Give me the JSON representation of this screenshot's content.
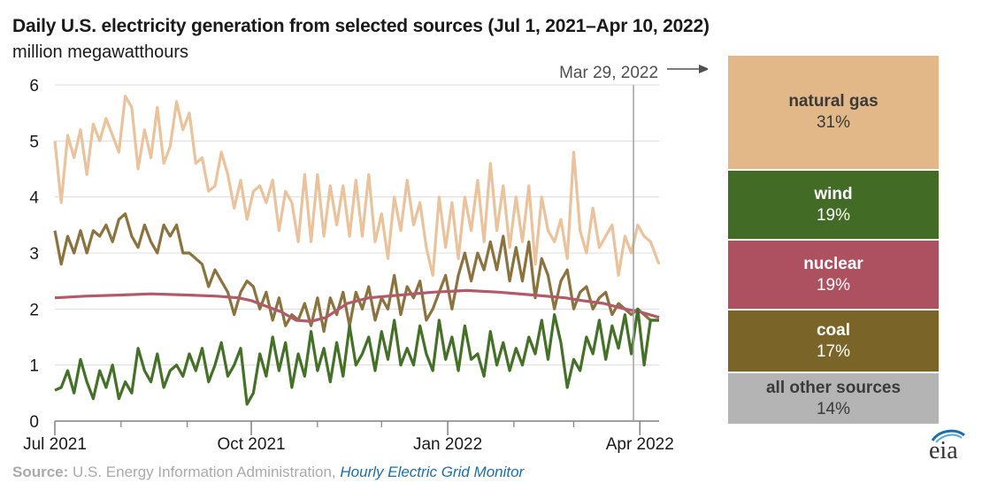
{
  "title": "Daily U.S. electricity generation from selected sources (Jul 1, 2021–Apr 10, 2022)",
  "subtitle": "million megawatthours",
  "annotation": "Mar 29, 2022",
  "source_prefix": "Source:",
  "source_text": " U.S. Energy Information Administration, ",
  "source_link": "Hourly Electric Grid Monitor",
  "logo_text": "eia",
  "shares": [
    {
      "name": "natural gas",
      "pct": "31%",
      "color": "#e2b888",
      "text": "#3a3a3a"
    },
    {
      "name": "wind",
      "pct": "19%",
      "color": "#426b25",
      "text": "#ffffff"
    },
    {
      "name": "nuclear",
      "pct": "19%",
      "color": "#ad5060",
      "text": "#ffffff"
    },
    {
      "name": "coal",
      "pct": "17%",
      "color": "#7a6427",
      "text": "#ffffff"
    },
    {
      "name": "all other sources",
      "pct": "14%",
      "color": "#b4b4b4",
      "text": "#3a3a3a"
    }
  ],
  "chart_data": {
    "type": "line",
    "title": "Daily U.S. electricity generation from selected sources (Jul 1, 2021–Apr 10, 2022)",
    "ylabel": "million megawatthours",
    "ylim": [
      0,
      6
    ],
    "yticks": [
      "0",
      "1",
      "2",
      "3",
      "4",
      "5",
      "6"
    ],
    "xlim": [
      "2021-07-01",
      "2022-04-10"
    ],
    "xticks": [
      {
        "date": "2021-07-01",
        "label": "Jul 2021"
      },
      {
        "date": "2021-10-01",
        "label": "Oct 2021"
      },
      {
        "date": "2022-01-01",
        "label": "Jan 2022"
      },
      {
        "date": "2022-04-01",
        "label": "Apr 2022"
      }
    ],
    "minor_ticks": [
      "2021-08-01",
      "2021-09-01",
      "2021-11-01",
      "2021-12-01",
      "2022-02-01",
      "2022-03-01"
    ],
    "marker_date": "2022-03-29",
    "grid": true,
    "series": [
      {
        "name": "natural gas",
        "color": "#eac29c",
        "x": [
          "2021-07-01",
          "2021-07-04",
          "2021-07-07",
          "2021-07-10",
          "2021-07-13",
          "2021-07-16",
          "2021-07-19",
          "2021-07-22",
          "2021-07-25",
          "2021-07-28",
          "2021-07-31",
          "2021-08-03",
          "2021-08-06",
          "2021-08-09",
          "2021-08-12",
          "2021-08-15",
          "2021-08-18",
          "2021-08-21",
          "2021-08-24",
          "2021-08-27",
          "2021-08-30",
          "2021-09-02",
          "2021-09-05",
          "2021-09-08",
          "2021-09-11",
          "2021-09-14",
          "2021-09-17",
          "2021-09-20",
          "2021-09-23",
          "2021-09-26",
          "2021-09-29",
          "2021-10-02",
          "2021-10-05",
          "2021-10-08",
          "2021-10-11",
          "2021-10-14",
          "2021-10-17",
          "2021-10-20",
          "2021-10-23",
          "2021-10-26",
          "2021-10-29",
          "2021-11-01",
          "2021-11-04",
          "2021-11-07",
          "2021-11-10",
          "2021-11-13",
          "2021-11-16",
          "2021-11-19",
          "2021-11-22",
          "2021-11-25",
          "2021-11-28",
          "2021-12-01",
          "2021-12-04",
          "2021-12-07",
          "2021-12-10",
          "2021-12-13",
          "2021-12-16",
          "2021-12-19",
          "2021-12-22",
          "2021-12-25",
          "2021-12-28",
          "2021-12-31",
          "2022-01-03",
          "2022-01-06",
          "2022-01-09",
          "2022-01-12",
          "2022-01-15",
          "2022-01-18",
          "2022-01-21",
          "2022-01-24",
          "2022-01-27",
          "2022-01-30",
          "2022-02-02",
          "2022-02-05",
          "2022-02-08",
          "2022-02-11",
          "2022-02-14",
          "2022-02-17",
          "2022-02-20",
          "2022-02-23",
          "2022-02-26",
          "2022-03-01",
          "2022-03-04",
          "2022-03-07",
          "2022-03-10",
          "2022-03-13",
          "2022-03-16",
          "2022-03-19",
          "2022-03-22",
          "2022-03-25",
          "2022-03-28",
          "2022-03-31",
          "2022-04-03",
          "2022-04-06",
          "2022-04-10"
        ],
        "values": [
          5.0,
          3.9,
          5.1,
          4.7,
          5.2,
          4.4,
          5.3,
          5.0,
          5.4,
          5.1,
          4.8,
          5.8,
          5.6,
          4.5,
          5.2,
          4.7,
          5.6,
          4.6,
          4.9,
          5.7,
          5.2,
          5.5,
          4.6,
          4.7,
          4.1,
          4.2,
          4.8,
          4.4,
          3.8,
          4.3,
          3.6,
          4.1,
          4.2,
          3.9,
          4.3,
          3.4,
          4.1,
          3.9,
          3.2,
          4.4,
          3.2,
          4.4,
          3.3,
          4.2,
          3.5,
          4.2,
          3.3,
          4.3,
          3.3,
          4.4,
          3.2,
          3.7,
          2.9,
          4.0,
          3.4,
          4.3,
          3.5,
          3.9,
          3.1,
          2.6,
          4.0,
          3.1,
          3.9,
          2.9,
          4.0,
          3.4,
          4.3,
          3.2,
          4.6,
          3.4,
          4.2,
          3.1,
          4.0,
          3.2,
          4.2,
          2.8,
          4.0,
          3.4,
          3.2,
          3.6,
          2.9,
          4.8,
          3.4,
          3.0,
          3.8,
          3.1,
          3.3,
          3.5,
          2.6,
          3.3,
          3.0,
          3.5,
          3.3,
          3.2,
          2.8
        ]
      },
      {
        "name": "coal",
        "color": "#8b7340",
        "x": [
          "2021-07-01",
          "2021-07-04",
          "2021-07-07",
          "2021-07-10",
          "2021-07-13",
          "2021-07-16",
          "2021-07-19",
          "2021-07-22",
          "2021-07-25",
          "2021-07-28",
          "2021-07-31",
          "2021-08-03",
          "2021-08-06",
          "2021-08-09",
          "2021-08-12",
          "2021-08-15",
          "2021-08-18",
          "2021-08-21",
          "2021-08-24",
          "2021-08-27",
          "2021-08-30",
          "2021-09-02",
          "2021-09-05",
          "2021-09-08",
          "2021-09-11",
          "2021-09-14",
          "2021-09-17",
          "2021-09-20",
          "2021-09-23",
          "2021-09-26",
          "2021-09-29",
          "2021-10-02",
          "2021-10-05",
          "2021-10-08",
          "2021-10-11",
          "2021-10-14",
          "2021-10-17",
          "2021-10-20",
          "2021-10-23",
          "2021-10-26",
          "2021-10-29",
          "2021-11-01",
          "2021-11-04",
          "2021-11-07",
          "2021-11-10",
          "2021-11-13",
          "2021-11-16",
          "2021-11-19",
          "2021-11-22",
          "2021-11-25",
          "2021-11-28",
          "2021-12-01",
          "2021-12-04",
          "2021-12-07",
          "2021-12-10",
          "2021-12-13",
          "2021-12-16",
          "2021-12-19",
          "2021-12-22",
          "2021-12-25",
          "2021-12-28",
          "2021-12-31",
          "2022-01-03",
          "2022-01-06",
          "2022-01-09",
          "2022-01-12",
          "2022-01-15",
          "2022-01-18",
          "2022-01-21",
          "2022-01-24",
          "2022-01-27",
          "2022-01-30",
          "2022-02-02",
          "2022-02-05",
          "2022-02-08",
          "2022-02-11",
          "2022-02-14",
          "2022-02-17",
          "2022-02-20",
          "2022-02-23",
          "2022-02-26",
          "2022-03-01",
          "2022-03-04",
          "2022-03-07",
          "2022-03-10",
          "2022-03-13",
          "2022-03-16",
          "2022-03-19",
          "2022-03-22",
          "2022-03-25",
          "2022-03-28",
          "2022-03-31",
          "2022-04-03",
          "2022-04-06",
          "2022-04-10"
        ],
        "values": [
          3.4,
          2.8,
          3.3,
          3.0,
          3.4,
          3.0,
          3.4,
          3.3,
          3.5,
          3.2,
          3.6,
          3.7,
          3.3,
          3.1,
          3.5,
          3.2,
          3.0,
          3.5,
          3.3,
          3.5,
          3.0,
          3.0,
          2.9,
          2.8,
          2.4,
          2.7,
          2.5,
          2.3,
          1.9,
          2.3,
          2.5,
          2.4,
          2.0,
          2.3,
          1.8,
          2.2,
          1.7,
          1.9,
          1.8,
          2.1,
          1.7,
          2.2,
          1.6,
          2.2,
          1.9,
          2.3,
          1.7,
          2.3,
          2.0,
          2.4,
          1.8,
          2.2,
          2.0,
          2.6,
          1.9,
          2.4,
          2.2,
          2.5,
          1.8,
          2.0,
          2.3,
          2.6,
          2.0,
          2.6,
          3.0,
          2.5,
          3.0,
          2.7,
          3.2,
          2.7,
          3.3,
          2.5,
          3.1,
          2.5,
          3.2,
          2.2,
          2.9,
          2.6,
          2.0,
          2.5,
          2.7,
          2.0,
          2.3,
          2.4,
          2.0,
          2.2,
          2.3,
          1.9,
          2.1,
          2.0,
          1.9,
          2.0,
          1.9,
          1.8,
          1.8
        ]
      },
      {
        "name": "nuclear",
        "color": "#b15b6a",
        "x": [
          "2021-07-01",
          "2021-07-15",
          "2021-08-01",
          "2021-08-15",
          "2021-09-01",
          "2021-09-15",
          "2021-09-25",
          "2021-10-01",
          "2021-10-08",
          "2021-10-15",
          "2021-10-22",
          "2021-10-29",
          "2021-11-05",
          "2021-11-15",
          "2021-11-25",
          "2021-12-10",
          "2021-12-25",
          "2022-01-10",
          "2022-01-25",
          "2022-02-10",
          "2022-02-25",
          "2022-03-05",
          "2022-03-15",
          "2022-03-25",
          "2022-04-01",
          "2022-04-10"
        ],
        "values": [
          2.2,
          2.23,
          2.25,
          2.27,
          2.25,
          2.23,
          2.2,
          2.15,
          2.05,
          1.95,
          1.8,
          1.78,
          1.85,
          2.1,
          2.2,
          2.25,
          2.3,
          2.33,
          2.3,
          2.25,
          2.2,
          2.15,
          2.1,
          2.0,
          1.95,
          1.85
        ]
      },
      {
        "name": "wind",
        "color": "#447028",
        "x": [
          "2021-07-01",
          "2021-07-04",
          "2021-07-07",
          "2021-07-10",
          "2021-07-13",
          "2021-07-16",
          "2021-07-19",
          "2021-07-22",
          "2021-07-25",
          "2021-07-28",
          "2021-07-31",
          "2021-08-03",
          "2021-08-06",
          "2021-08-09",
          "2021-08-12",
          "2021-08-15",
          "2021-08-18",
          "2021-08-21",
          "2021-08-24",
          "2021-08-27",
          "2021-08-30",
          "2021-09-02",
          "2021-09-05",
          "2021-09-08",
          "2021-09-11",
          "2021-09-14",
          "2021-09-17",
          "2021-09-20",
          "2021-09-23",
          "2021-09-26",
          "2021-09-29",
          "2021-10-02",
          "2021-10-05",
          "2021-10-08",
          "2021-10-11",
          "2021-10-14",
          "2021-10-17",
          "2021-10-20",
          "2021-10-23",
          "2021-10-26",
          "2021-10-29",
          "2021-11-01",
          "2021-11-04",
          "2021-11-07",
          "2021-11-10",
          "2021-11-13",
          "2021-11-16",
          "2021-11-19",
          "2021-11-22",
          "2021-11-25",
          "2021-11-28",
          "2021-12-01",
          "2021-12-04",
          "2021-12-07",
          "2021-12-10",
          "2021-12-13",
          "2021-12-16",
          "2021-12-19",
          "2021-12-22",
          "2021-12-25",
          "2021-12-28",
          "2021-12-31",
          "2022-01-03",
          "2022-01-06",
          "2022-01-09",
          "2022-01-12",
          "2022-01-15",
          "2022-01-18",
          "2022-01-21",
          "2022-01-24",
          "2022-01-27",
          "2022-01-30",
          "2022-02-02",
          "2022-02-05",
          "2022-02-08",
          "2022-02-11",
          "2022-02-14",
          "2022-02-17",
          "2022-02-20",
          "2022-02-23",
          "2022-02-26",
          "2022-03-01",
          "2022-03-04",
          "2022-03-07",
          "2022-03-10",
          "2022-03-13",
          "2022-03-16",
          "2022-03-19",
          "2022-03-22",
          "2022-03-25",
          "2022-03-28",
          "2022-03-31",
          "2022-04-03",
          "2022-04-06",
          "2022-04-10"
        ],
        "values": [
          0.55,
          0.6,
          0.9,
          0.5,
          1.1,
          0.7,
          0.4,
          0.9,
          0.6,
          1.0,
          0.4,
          0.7,
          0.5,
          1.3,
          0.9,
          0.7,
          1.2,
          0.6,
          0.9,
          1.0,
          0.8,
          1.2,
          0.9,
          1.3,
          0.7,
          1.0,
          1.4,
          0.8,
          1.0,
          1.3,
          0.3,
          0.5,
          1.2,
          0.8,
          1.5,
          0.9,
          1.4,
          0.6,
          1.2,
          0.8,
          1.6,
          0.9,
          1.3,
          0.7,
          1.4,
          0.8,
          1.7,
          1.0,
          1.2,
          1.5,
          0.9,
          1.6,
          1.1,
          1.8,
          1.0,
          1.3,
          1.0,
          1.7,
          1.2,
          0.9,
          1.8,
          1.1,
          1.5,
          0.9,
          1.7,
          1.1,
          1.2,
          0.8,
          1.6,
          1.0,
          1.4,
          0.9,
          1.3,
          1.0,
          1.5,
          1.2,
          1.8,
          1.1,
          1.9,
          1.4,
          0.6,
          1.1,
          0.9,
          1.5,
          1.2,
          1.8,
          1.1,
          1.7,
          1.3,
          1.9,
          1.2,
          2.0,
          1.0,
          1.8,
          1.8
        ]
      }
    ]
  }
}
